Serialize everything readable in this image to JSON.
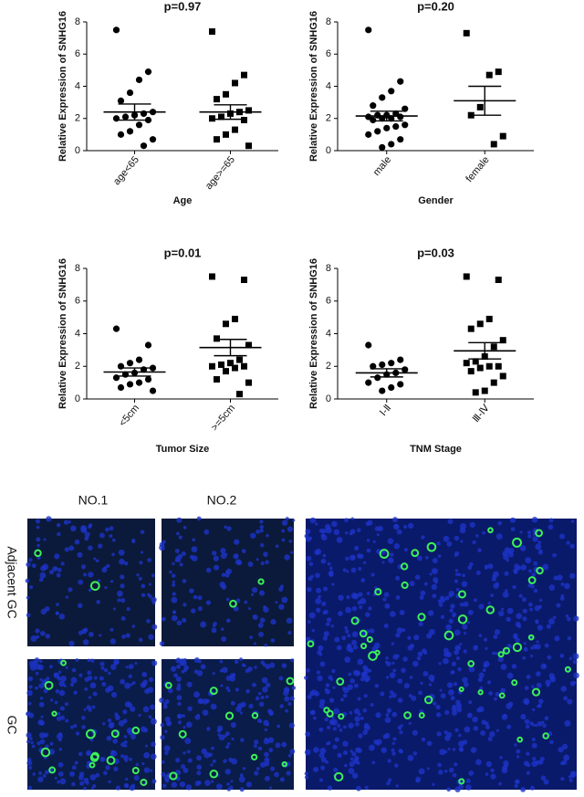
{
  "chart_data": [
    {
      "type": "dot",
      "title": "p=0.97",
      "ylabel": "Relative Expression of SNHG16",
      "xlabel": "Age",
      "categories": [
        "age<65",
        "age>=65"
      ],
      "ylim": [
        0,
        8
      ],
      "yticks": [
        0,
        2,
        4,
        6,
        8
      ],
      "color": "#000000",
      "groups": [
        {
          "marker": "circle",
          "values": [
            7.5,
            4.9,
            4.4,
            3.6,
            3.1,
            2.4,
            2.3,
            2.2,
            2.1,
            2.0,
            1.9,
            1.6,
            1.2,
            1.0,
            0.7,
            0.3
          ],
          "mean": 2.4,
          "sem": 0.5
        },
        {
          "marker": "square",
          "values": [
            7.4,
            4.7,
            4.2,
            3.5,
            3.2,
            2.5,
            2.4,
            2.3,
            2.1,
            2.0,
            1.9,
            1.3,
            1.0,
            0.7,
            0.3
          ],
          "mean": 2.4,
          "sem": 0.45
        }
      ]
    },
    {
      "type": "dot",
      "title": "p=0.20",
      "ylabel": "Relative Expression of SNHG16",
      "xlabel": "Gender",
      "categories": [
        "male",
        "female"
      ],
      "ylim": [
        0,
        8
      ],
      "yticks": [
        0,
        2,
        4,
        6,
        8
      ],
      "color": "#000000",
      "groups": [
        {
          "marker": "circle",
          "values": [
            7.5,
            4.3,
            3.7,
            3.3,
            2.8,
            2.6,
            2.3,
            2.2,
            2.2,
            2.1,
            2.1,
            2.0,
            2.0,
            1.9,
            1.6,
            1.5,
            1.4,
            1.2,
            1.0,
            0.7,
            0.4,
            0.2
          ],
          "mean": 2.15,
          "sem": 0.3
        },
        {
          "marker": "square",
          "values": [
            7.3,
            4.9,
            4.7,
            2.7,
            2.2,
            0.9,
            0.4
          ],
          "mean": 3.1,
          "sem": 0.9
        }
      ]
    },
    {
      "type": "dot",
      "title": "p=0.01",
      "ylabel": "Relative Expression of SNHG16",
      "xlabel": "Tumor Size",
      "categories": [
        "<5cm",
        ">=5cm"
      ],
      "ylim": [
        0,
        8
      ],
      "yticks": [
        0,
        2,
        4,
        6,
        8
      ],
      "color": "#000000",
      "groups": [
        {
          "marker": "circle",
          "values": [
            4.3,
            3.3,
            2.4,
            2.2,
            2.0,
            1.9,
            1.8,
            1.6,
            1.5,
            1.3,
            1.2,
            1.0,
            0.9,
            0.7,
            0.5
          ],
          "mean": 1.65,
          "sem": 0.25
        },
        {
          "marker": "square",
          "values": [
            7.5,
            7.3,
            4.9,
            4.6,
            3.7,
            3.3,
            2.4,
            2.2,
            2.1,
            2.0,
            2.0,
            1.9,
            1.7,
            1.2,
            1.0,
            0.3
          ],
          "mean": 3.15,
          "sem": 0.5
        }
      ]
    },
    {
      "type": "dot",
      "title": "p=0.03",
      "ylabel": "Relative Expression of SNHG16",
      "xlabel": "TNM Stage",
      "categories": [
        "Ⅰ-Ⅱ",
        "Ⅲ-Ⅳ"
      ],
      "ylim": [
        0,
        8
      ],
      "yticks": [
        0,
        2,
        4,
        6,
        8
      ],
      "color": "#000000",
      "groups": [
        {
          "marker": "circle",
          "values": [
            3.3,
            2.4,
            2.2,
            2.1,
            2.0,
            1.8,
            1.6,
            1.5,
            1.3,
            1.0,
            0.9,
            0.7,
            0.5
          ],
          "mean": 1.6,
          "sem": 0.25
        },
        {
          "marker": "square",
          "values": [
            7.5,
            7.3,
            4.9,
            4.6,
            4.3,
            3.6,
            3.2,
            2.6,
            2.3,
            2.2,
            2.0,
            2.0,
            1.9,
            1.7,
            1.4,
            1.0,
            0.5,
            0.4
          ],
          "mean": 2.95,
          "sem": 0.5
        }
      ]
    }
  ],
  "image_labels": {
    "columns": [
      "NO.1",
      "NO.2"
    ],
    "rows": [
      "Adjacent GC",
      "GC"
    ]
  }
}
